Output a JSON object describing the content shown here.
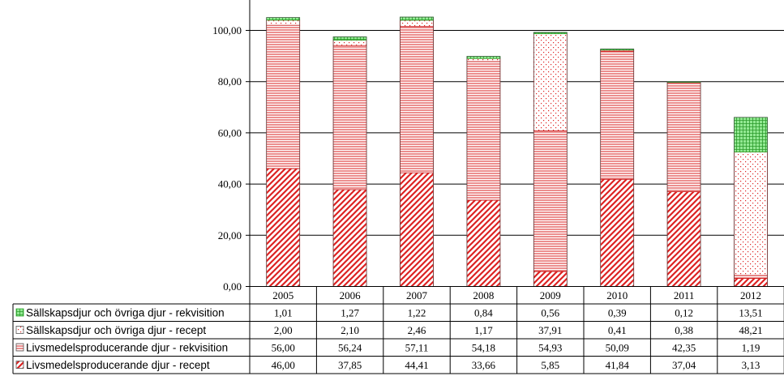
{
  "chart_data": {
    "type": "bar",
    "stacked": true,
    "categories": [
      "2005",
      "2006",
      "2007",
      "2008",
      "2009",
      "2010",
      "2011",
      "2012"
    ],
    "series": [
      {
        "name": "Sällskapsdjur och övriga djur - rekvisition",
        "display_values": [
          "1,01",
          "1,27",
          "1,22",
          "0,84",
          "0,56",
          "0,39",
          "0,12",
          "13,51"
        ],
        "values": [
          1.01,
          1.27,
          1.22,
          0.84,
          0.56,
          0.39,
          0.12,
          13.51
        ],
        "color": "#2ea82e",
        "fill": "#90ee90",
        "pattern": "grid"
      },
      {
        "name": "Sällskapsdjur och övriga djur - recept",
        "display_values": [
          "2,00",
          "2,10",
          "2,46",
          "1,17",
          "37,91",
          "0,41",
          "0,38",
          "48,21"
        ],
        "values": [
          2.0,
          2.1,
          2.46,
          1.17,
          37.91,
          0.41,
          0.38,
          48.21
        ],
        "color": "#cc2222",
        "fill": "#ffffff",
        "pattern": "dots"
      },
      {
        "name": "Livsmedelsproducerande djur - rekvisition",
        "display_values": [
          "56,00",
          "56,24",
          "57,11",
          "54,18",
          "54,93",
          "50,09",
          "42,35",
          "1,19"
        ],
        "values": [
          56.0,
          56.24,
          57.11,
          54.18,
          54.93,
          50.09,
          42.35,
          1.19
        ],
        "color": "#cc2222",
        "fill": "#ffffff",
        "pattern": "hlines"
      },
      {
        "name": "Livsmedelsproducerande djur - recept",
        "display_values": [
          "46,00",
          "37,85",
          "44,41",
          "33,66",
          "5,85",
          "41,84",
          "37,04",
          "3,13"
        ],
        "values": [
          46.0,
          37.85,
          44.41,
          33.66,
          5.85,
          41.84,
          37.04,
          3.13
        ],
        "color": "#cc2222",
        "fill": "#ffffff",
        "pattern": "diag"
      }
    ],
    "y_ticks": [
      "0,00",
      "20,00",
      "40,00",
      "60,00",
      "80,00",
      "100,00"
    ],
    "y_tick_values": [
      0,
      20,
      40,
      60,
      80,
      100
    ],
    "ylim": [
      0,
      113
    ],
    "grid": true,
    "legend": "data-table",
    "title": "",
    "xlabel": "",
    "ylabel": ""
  }
}
